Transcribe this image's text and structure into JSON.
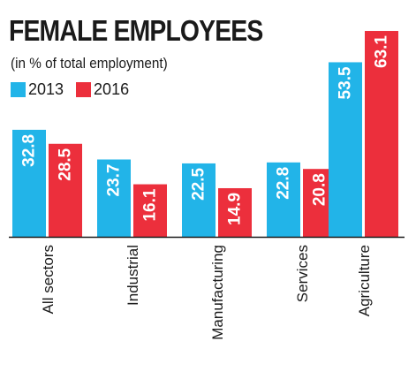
{
  "chart_data": {
    "type": "bar",
    "title": "FEMALE EMPLOYEES",
    "subtitle": "(in % of total employment)",
    "categories": [
      "All sectors",
      "Industrial",
      "Manufacturing",
      "Services",
      "Agriculture"
    ],
    "series": [
      {
        "name": "2013",
        "color": "#22b4e8",
        "values": [
          32.8,
          23.7,
          22.5,
          22.8,
          53.5
        ]
      },
      {
        "name": "2016",
        "color": "#ec2f3c",
        "values": [
          28.5,
          16.1,
          14.9,
          20.8,
          63.1
        ]
      }
    ],
    "ylim": [
      0,
      65
    ],
    "grid": false,
    "legend_position": "top-left"
  }
}
